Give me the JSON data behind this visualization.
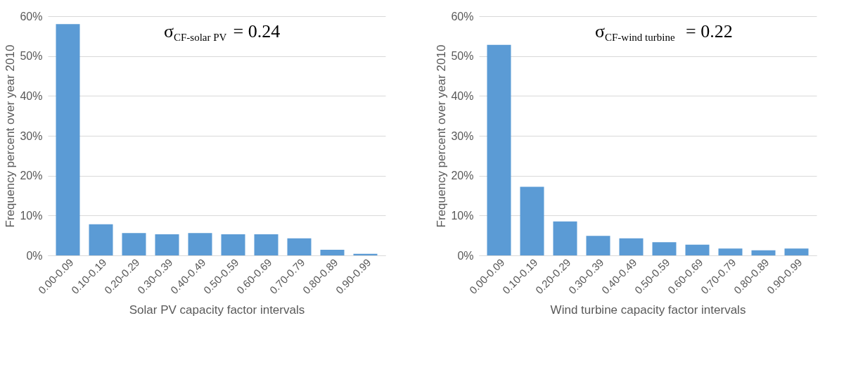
{
  "chart_data": [
    {
      "type": "bar",
      "xlabel": "Solar PV capacity factor intervals",
      "ylabel": "Frequency percent over year 2010",
      "categories": [
        "0.00-0.09",
        "0.10-0.19",
        "0.20-0.29",
        "0.30-0.39",
        "0.40-0.49",
        "0.50-0.59",
        "0.60-0.69",
        "0.70-0.79",
        "0.80-0.89",
        "0.90-0.99"
      ],
      "values": [
        58,
        7.8,
        5.6,
        5.3,
        5.6,
        5.3,
        5.3,
        4.3,
        1.4,
        0.4
      ],
      "color": "#5b9bd5",
      "ylim": [
        0,
        60
      ],
      "yticks": [
        {
          "value": 0,
          "label": "0%"
        },
        {
          "value": 10,
          "label": "10%"
        },
        {
          "value": 20,
          "label": "20%"
        },
        {
          "value": 30,
          "label": "30%"
        },
        {
          "value": 40,
          "label": "40%"
        },
        {
          "value": 50,
          "label": "50%"
        },
        {
          "value": 60,
          "label": "60%"
        }
      ],
      "grid": "y",
      "annotations": [
        "σ$_{CF-solar PV}$= 0.24"
      ]
    },
    {
      "type": "bar",
      "xlabel": "Wind turbine capacity factor intervals",
      "ylabel": "Frequency percent over year 2010",
      "categories": [
        "0.00-0.09",
        "0.10-0.19",
        "0.20-0.29",
        "0.30-0.39",
        "0.40-0.49",
        "0.50-0.59",
        "0.60-0.69",
        "0.70-0.79",
        "0.80-0.89",
        "0.90-0.99"
      ],
      "values": [
        52.8,
        17.2,
        8.5,
        4.9,
        4.3,
        3.3,
        2.7,
        1.7,
        1.3,
        1.7
      ],
      "color": "#5b9bd5",
      "ylim": [
        0,
        60
      ],
      "yticks": [
        {
          "value": 0,
          "label": "0%"
        },
        {
          "value": 10,
          "label": "10%"
        },
        {
          "value": 20,
          "label": "20%"
        },
        {
          "value": 30,
          "label": "30%"
        },
        {
          "value": 40,
          "label": "40%"
        },
        {
          "value": 50,
          "label": "50%"
        },
        {
          "value": 60,
          "label": "60%"
        }
      ],
      "grid": "y",
      "annotations": [
        "σ$_{CF-wind turbine}$= 0.22"
      ]
    }
  ]
}
